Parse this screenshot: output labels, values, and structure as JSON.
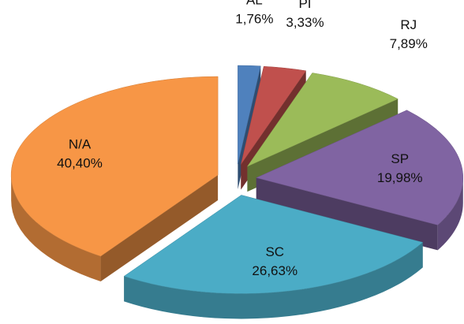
{
  "chart_data": {
    "type": "pie",
    "categories": [
      "AL",
      "PI",
      "RJ",
      "SP",
      "SC",
      "N/A"
    ],
    "values": [
      1.76,
      3.33,
      7.89,
      19.98,
      26.63,
      40.4
    ],
    "value_labels": [
      "1,76%",
      "3,33%",
      "7,89%",
      "19,98%",
      "26,63%",
      "40,40%"
    ],
    "colors": [
      "#4f81bd",
      "#c0504d",
      "#9bbb59",
      "#8064a2",
      "#4bacc6",
      "#f79646"
    ]
  }
}
